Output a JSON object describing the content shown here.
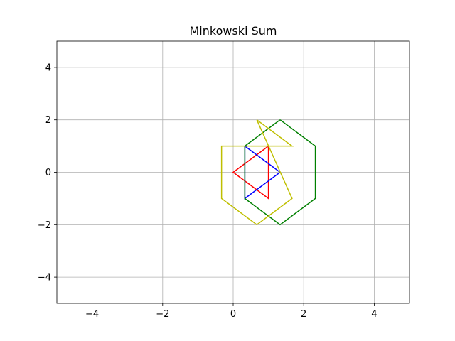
{
  "chart_data": {
    "type": "line",
    "title": "Minkowski Sum",
    "xlabel": "",
    "ylabel": "",
    "xlim": [
      -5,
      5
    ],
    "ylim": [
      -5,
      5
    ],
    "x_ticks": [
      -4,
      -2,
      0,
      2,
      4
    ],
    "y_ticks": [
      -4,
      -2,
      0,
      2,
      4
    ],
    "x_tick_labels": [
      "−4",
      "−2",
      "0",
      "2",
      "4"
    ],
    "y_tick_labels": [
      "−4",
      "−2",
      "0",
      "2",
      "4"
    ],
    "grid": true,
    "legend": null,
    "series": [
      {
        "color": "#ff0000",
        "points": [
          [
            1,
            1
          ],
          [
            0,
            0
          ],
          [
            1,
            -1
          ],
          [
            1,
            1
          ]
        ]
      },
      {
        "color": "#0000ff",
        "points": [
          [
            0.33,
            1
          ],
          [
            1.33,
            0
          ],
          [
            0.33,
            -1
          ],
          [
            0.33,
            1
          ]
        ]
      },
      {
        "color": "#008000",
        "points": [
          [
            1.33,
            2
          ],
          [
            2.33,
            1
          ],
          [
            2.33,
            -1
          ],
          [
            1.33,
            -2
          ],
          [
            0.33,
            -1
          ],
          [
            0.33,
            1
          ],
          [
            1.33,
            2
          ]
        ]
      },
      {
        "color": "#bfbf00",
        "points": [
          [
            0.67,
            2
          ],
          [
            1.67,
            1
          ],
          [
            -0.33,
            1
          ],
          [
            -0.33,
            -1
          ],
          [
            0.67,
            -2
          ],
          [
            1.67,
            -1
          ],
          [
            0.67,
            2
          ]
        ]
      }
    ]
  }
}
